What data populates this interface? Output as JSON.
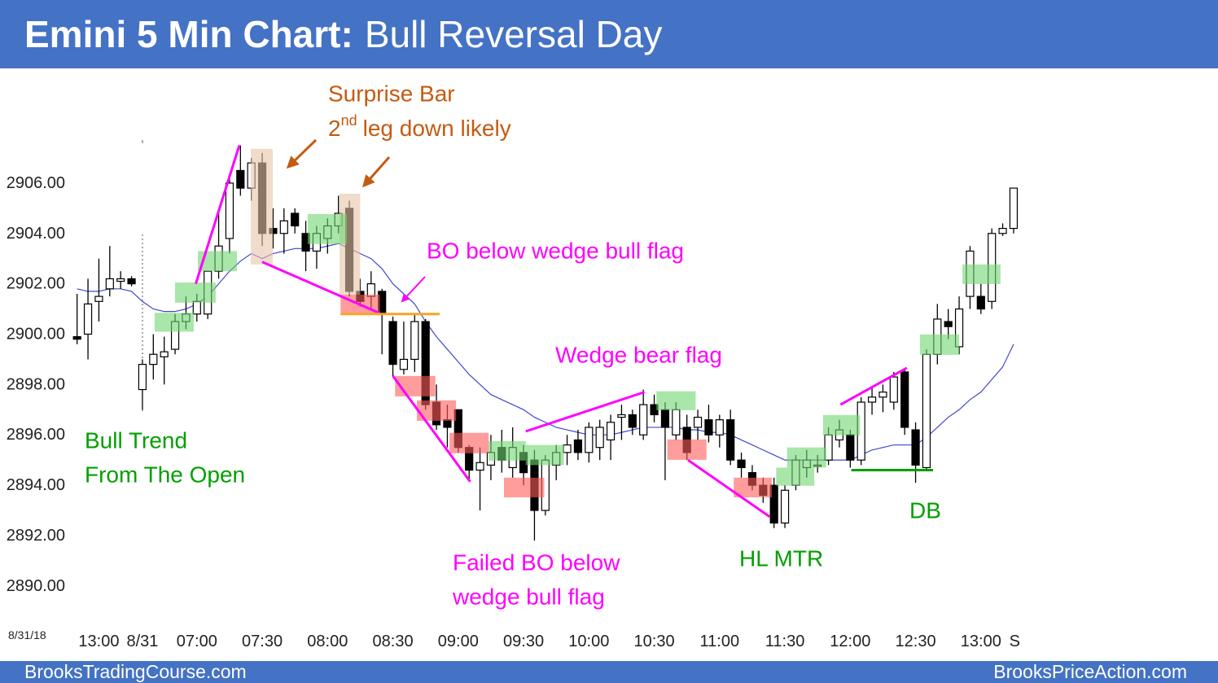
{
  "chart_data": {
    "type": "candlestick",
    "title_bold": "Emini 5 Min Chart:",
    "title": "Bull Reversal Day",
    "date_label": "8/31/18",
    "footer_left": "BrooksTradingCourse.com",
    "footer_right": "BrooksPriceAction.com",
    "xlim": [
      -6.5,
      81.5
    ],
    "ylim": [
      2888.7,
      2910.2
    ],
    "xticks": [
      {
        "value": -4,
        "label": "13:00"
      },
      {
        "value": 0,
        "label": "8/31"
      },
      {
        "value": 5,
        "label": "07:00"
      },
      {
        "value": 11,
        "label": "07:30"
      },
      {
        "value": 17,
        "label": "08:00"
      },
      {
        "value": 23,
        "label": "08:30"
      },
      {
        "value": 29,
        "label": "09:00"
      },
      {
        "value": 35,
        "label": "09:30"
      },
      {
        "value": 41,
        "label": "10:00"
      },
      {
        "value": 47,
        "label": "10:30"
      },
      {
        "value": 53,
        "label": "11:00"
      },
      {
        "value": 59,
        "label": "11:30"
      },
      {
        "value": 65,
        "label": "12:00"
      },
      {
        "value": 71,
        "label": "12:30"
      },
      {
        "value": 77,
        "label": "13:00"
      },
      {
        "value": 80.1,
        "label": "S"
      }
    ],
    "yticks": [
      {
        "value": 2890,
        "label": "2890.00"
      },
      {
        "value": 2892,
        "label": "2892.00"
      },
      {
        "value": 2894,
        "label": "2894.00"
      },
      {
        "value": 2896,
        "label": "2896.00"
      },
      {
        "value": 2898,
        "label": "2898.00"
      },
      {
        "value": 2900,
        "label": "2900.00"
      },
      {
        "value": 2902,
        "label": "2902.00"
      },
      {
        "value": 2904,
        "label": "2904.00"
      },
      {
        "value": 2906,
        "label": "2906.00"
      }
    ],
    "x": [
      -6,
      -5,
      -4,
      -3,
      -2,
      -1,
      0,
      1,
      2,
      3,
      4,
      5,
      6,
      7,
      8,
      9,
      10,
      11,
      12,
      13,
      14,
      15,
      16,
      17,
      18,
      19,
      20,
      21,
      22,
      23,
      24,
      25,
      26,
      27,
      28,
      29,
      30,
      31,
      32,
      33,
      34,
      35,
      36,
      37,
      38,
      39,
      40,
      41,
      42,
      43,
      44,
      45,
      46,
      47,
      48,
      49,
      50,
      51,
      52,
      53,
      54,
      55,
      56,
      57,
      58,
      59,
      60,
      61,
      62,
      63,
      64,
      65,
      66,
      67,
      68,
      69,
      70,
      71,
      72,
      73,
      74,
      75,
      76,
      77,
      78,
      79,
      80
    ],
    "open": [
      2899.9,
      2900.0,
      2901.3,
      2901.8,
      2902.1,
      2902.2,
      2897.8,
      2898.8,
      2899.1,
      2899.4,
      2900.5,
      2900.8,
      2900.8,
      2902.5,
      2903.8,
      2906.5,
      2905.8,
      2906.8,
      2904.2,
      2904.0,
      2904.8,
      2904.0,
      2903.3,
      2903.8,
      2904.3,
      2905.0,
      2901.7,
      2901.5,
      2901.7,
      2900.5,
      2898.6,
      2899.0,
      2900.5,
      2897.3,
      2896.6,
      2897.0,
      2895.5,
      2894.6,
      2894.8,
      2895.5,
      2894.7,
      2895.3,
      2895.0,
      2893.0,
      2894.8,
      2895.3,
      2895.8,
      2895.3,
      2895.5,
      2895.8,
      2896.7,
      2896.8,
      2896.0,
      2897.2,
      2897.0,
      2896.0,
      2896.3,
      2896.3,
      2896.6,
      2896.0,
      2896.6,
      2895.0,
      2894.5,
      2894.0,
      2894.0,
      2892.5,
      2894.0,
      2894.7,
      2894.8,
      2895.0,
      2895.8,
      2896.0,
      2895.0,
      2897.3,
      2897.5,
      2897.3,
      2898.5,
      2896.2,
      2894.7,
      2899.2,
      2900.5,
      2899.5,
      2901.5,
      2901.5,
      2901.3,
      2904.0,
      2904.2
    ],
    "high": [
      2901.6,
      2902.2,
      2903.0,
      2903.5,
      2902.5,
      2902.3,
      2899.0,
      2900.0,
      2899.9,
      2900.8,
      2901.5,
      2901.6,
      2902.5,
      2904.8,
      2906.2,
      2907.5,
      2907.0,
      2907.2,
      2905.0,
      2905.0,
      2905.0,
      2904.5,
      2904.3,
      2904.6,
      2905.5,
      2905.3,
      2902.2,
      2902.5,
      2901.8,
      2900.7,
      2900.5,
      2900.8,
      2900.6,
      2898.0,
      2897.2,
      2897.0,
      2895.6,
      2895.5,
      2896.0,
      2896.2,
      2896.3,
      2895.6,
      2895.4,
      2895.2,
      2895.6,
      2896.0,
      2896.2,
      2896.5,
      2896.6,
      2896.8,
      2897.2,
      2897.0,
      2897.8,
      2897.6,
      2897.3,
      2897.3,
      2896.8,
      2897.0,
      2897.2,
      2896.8,
      2897.0,
      2895.3,
      2894.8,
      2894.3,
      2894.3,
      2894.0,
      2895.2,
      2895.4,
      2895.2,
      2896.3,
      2896.6,
      2896.2,
      2897.5,
      2897.9,
      2898.0,
      2898.5,
      2898.6,
      2896.5,
      2899.4,
      2901.2,
      2901.0,
      2901.5,
      2903.5,
      2902.0,
      2904.2,
      2904.4,
      2905.8
    ],
    "low": [
      2899.6,
      2899.0,
      2900.5,
      2901.5,
      2901.8,
      2901.9,
      2897.0,
      2898.2,
      2898.0,
      2899.2,
      2900.2,
      2900.5,
      2900.6,
      2902.2,
      2903.2,
      2905.5,
      2905.3,
      2903.5,
      2903.4,
      2903.2,
      2904.0,
      2902.5,
      2902.6,
      2903.2,
      2904.0,
      2901.5,
      2901.1,
      2901.0,
      2899.2,
      2898.3,
      2898.4,
      2898.5,
      2897.0,
      2896.2,
      2895.5,
      2895.3,
      2894.2,
      2893.0,
      2894.2,
      2894.5,
      2894.3,
      2894.0,
      2891.8,
      2892.8,
      2894.2,
      2894.8,
      2895.0,
      2894.9,
      2895.0,
      2895.0,
      2895.8,
      2896.0,
      2895.8,
      2896.5,
      2894.2,
      2895.8,
      2895.0,
      2895.8,
      2895.7,
      2895.5,
      2894.8,
      2894.3,
      2893.8,
      2893.3,
      2892.3,
      2892.3,
      2893.8,
      2894.3,
      2894.5,
      2894.8,
      2895.5,
      2894.7,
      2894.8,
      2896.8,
      2896.9,
      2897.0,
      2896.0,
      2894.1,
      2894.6,
      2898.8,
      2899.8,
      2899.2,
      2901.0,
      2900.8,
      2901.0,
      2903.9,
      2904.0
    ],
    "close": [
      2899.8,
      2901.2,
      2901.5,
      2902.2,
      2902.2,
      2902.0,
      2898.8,
      2899.2,
      2899.3,
      2900.5,
      2900.8,
      2901.3,
      2902.5,
      2903.5,
      2906.0,
      2905.8,
      2906.8,
      2904.0,
      2904.0,
      2904.5,
      2904.3,
      2903.3,
      2904.0,
      2904.3,
      2904.8,
      2901.7,
      2901.3,
      2902.0,
      2900.8,
      2898.8,
      2899.0,
      2900.5,
      2897.2,
      2896.4,
      2896.3,
      2895.5,
      2894.6,
      2894.9,
      2895.3,
      2895.0,
      2895.5,
      2894.5,
      2893.0,
      2895.0,
      2895.3,
      2895.6,
      2895.3,
      2896.3,
      2896.3,
      2896.5,
      2896.8,
      2896.3,
      2897.2,
      2896.8,
      2896.3,
      2897.0,
      2895.3,
      2896.7,
      2896.0,
      2896.6,
      2895.0,
      2894.7,
      2894.0,
      2893.6,
      2892.5,
      2893.8,
      2895.0,
      2895.0,
      2894.8,
      2896.0,
      2896.2,
      2895.0,
      2897.3,
      2897.5,
      2897.7,
      2898.3,
      2896.3,
      2894.8,
      2899.2,
      2900.6,
      2900.3,
      2901.0,
      2903.3,
      2901.0,
      2904.0,
      2904.2,
      2905.8
    ],
    "ema_color": "#3f48cc",
    "ema": [
      2901.8,
      2901.7,
      2901.7,
      2901.8,
      2901.8,
      2901.7,
      2901.3,
      2901.0,
      2900.9,
      2900.9,
      2901.0,
      2901.2,
      2901.5,
      2902.0,
      2902.5,
      2902.9,
      2903.2,
      2903.0,
      2903.2,
      2903.3,
      2903.4,
      2903.4,
      2903.4,
      2903.5,
      2903.6,
      2903.4,
      2903.2,
      2903.0,
      2902.6,
      2902.0,
      2901.6,
      2901.2,
      2900.5,
      2899.9,
      2899.4,
      2898.9,
      2898.4,
      2898.0,
      2897.6,
      2897.4,
      2897.2,
      2897.0,
      2896.7,
      2896.5,
      2896.3,
      2896.2,
      2896.1,
      2896.0,
      2896.0,
      2896.0,
      2896.1,
      2896.2,
      2896.3,
      2896.3,
      2896.3,
      2896.3,
      2896.2,
      2896.2,
      2896.1,
      2896.1,
      2896.0,
      2895.8,
      2895.6,
      2895.4,
      2895.2,
      2895.0,
      2895.0,
      2895.0,
      2895.0,
      2895.0,
      2895.0,
      2895.0,
      2895.2,
      2895.4,
      2895.5,
      2895.6,
      2895.6,
      2895.6,
      2895.9,
      2896.3,
      2896.7,
      2897.0,
      2897.4,
      2897.7,
      2898.2,
      2898.7,
      2899.6
    ],
    "zones": [
      {
        "color": "#e8c4a8",
        "x": [
          9.95,
          11.97
        ],
        "y": [
          2902.77,
          2907.36
        ]
      },
      {
        "color": "#e8c4a8",
        "x": [
          18.1,
          20.0
        ],
        "y": [
          2901.57,
          2905.58
        ]
      },
      {
        "color": "#6fd66f",
        "x": [
          1.12,
          4.71
        ],
        "y": [
          2900.1,
          2900.85
        ]
      },
      {
        "color": "#6fd66f",
        "x": [
          2.99,
          6.73
        ],
        "y": [
          2901.25,
          2902.05
        ]
      },
      {
        "color": "#6fd66f",
        "x": [
          5.09,
          8.68
        ],
        "y": [
          2902.5,
          2903.3
        ]
      },
      {
        "color": "#6fd66f",
        "x": [
          15.18,
          18.77
        ],
        "y": [
          2903.58,
          2904.77
        ]
      },
      {
        "color": "#6fd66f",
        "x": [
          31.8,
          35.2
        ],
        "y": [
          2894.98,
          2895.75
        ]
      },
      {
        "color": "#6fd66f",
        "x": [
          35.2,
          38.7
        ],
        "y": [
          2894.8,
          2895.6
        ]
      },
      {
        "color": "#6fd66f",
        "x": [
          47.2,
          50.8
        ],
        "y": [
          2896.98,
          2897.73
        ]
      },
      {
        "color": "#6fd66f",
        "x": [
          58.2,
          61.7
        ],
        "y": [
          2893.98,
          2894.7
        ]
      },
      {
        "color": "#6fd66f",
        "x": [
          59.2,
          62.8
        ],
        "y": [
          2894.7,
          2895.5
        ]
      },
      {
        "color": "#6fd66f",
        "x": [
          62.5,
          65.9
        ],
        "y": [
          2895.98,
          2896.79
        ]
      },
      {
        "color": "#6fd66f",
        "x": [
          71.4,
          75.0
        ],
        "y": [
          2899.18,
          2899.99
        ]
      },
      {
        "color": "#6fd66f",
        "x": [
          75.3,
          78.8
        ],
        "y": [
          2901.99,
          2902.77
        ]
      },
      {
        "color": "#ff5a5a",
        "x": [
          18.2,
          21.8
        ],
        "y": [
          2900.76,
          2901.57
        ]
      },
      {
        "color": "#ff5a5a",
        "x": [
          23.2,
          26.9
        ],
        "y": [
          2897.53,
          2898.34
        ]
      },
      {
        "color": "#ff5a5a",
        "x": [
          25.2,
          28.8
        ],
        "y": [
          2896.56,
          2897.37
        ]
      },
      {
        "color": "#ff5a5a",
        "x": [
          28.2,
          31.8
        ],
        "y": [
          2895.27,
          2896.08
        ]
      },
      {
        "color": "#ff5a5a",
        "x": [
          33.2,
          36.9
        ],
        "y": [
          2893.52,
          2894.3
        ]
      },
      {
        "color": "#ff5a5a",
        "x": [
          48.2,
          51.8
        ],
        "y": [
          2895.01,
          2895.82
        ]
      },
      {
        "color": "#ff5a5a",
        "x": [
          54.3,
          57.8
        ],
        "y": [
          2893.52,
          2894.3
        ]
      }
    ],
    "lines": [
      {
        "color": "#ff00ff",
        "x": [
          4.9,
          8.9
        ],
        "y": [
          2902.0,
          2907.5
        ]
      },
      {
        "color": "#ff00ff",
        "x": [
          11.0,
          21.8
        ],
        "y": [
          2902.87,
          2900.83
        ]
      },
      {
        "color": "#ff00ff",
        "x": [
          23.0,
          30.1
        ],
        "y": [
          2898.34,
          2894.14
        ]
      },
      {
        "color": "#ff00ff",
        "x": [
          35.2,
          46.1
        ],
        "y": [
          2896.14,
          2897.7
        ]
      },
      {
        "color": "#ff00ff",
        "x": [
          50.1,
          57.6
        ],
        "y": [
          2895.0,
          2892.75
        ]
      },
      {
        "color": "#ff00ff",
        "x": [
          64.1,
          70.2
        ],
        "y": [
          2897.2,
          2898.66
        ]
      },
      {
        "color": "#f5a623",
        "x": [
          18.2,
          27.3
        ],
        "y": [
          2900.8,
          2900.8
        ]
      },
      {
        "color": "#00a000",
        "x": [
          65.1,
          72.6
        ],
        "y": [
          2894.6,
          2894.6
        ]
      }
    ],
    "annotations": [
      {
        "color": "#c55a11",
        "lines": [
          "Surprise Bar"
        ]
      },
      {
        "color": "#ff00ff",
        "lines": [
          "BO below wedge bull flag"
        ]
      },
      {
        "color": "#ff00ff",
        "lines": [
          "Wedge bear flag"
        ]
      },
      {
        "color": "#00a000",
        "lines": [
          "Bull Trend",
          "From The Open"
        ]
      },
      {
        "color": "#ff00ff",
        "lines": [
          "Failed BO below",
          "wedge bull flag"
        ]
      },
      {
        "color": "#00a000",
        "lines": [
          "HL MTR"
        ]
      },
      {
        "color": "#00a000",
        "lines": [
          "DB"
        ]
      }
    ],
    "superscript_note": {
      "color": "#c55a11",
      "base": "2",
      "sup": "nd",
      "text": "leg down likely"
    }
  }
}
